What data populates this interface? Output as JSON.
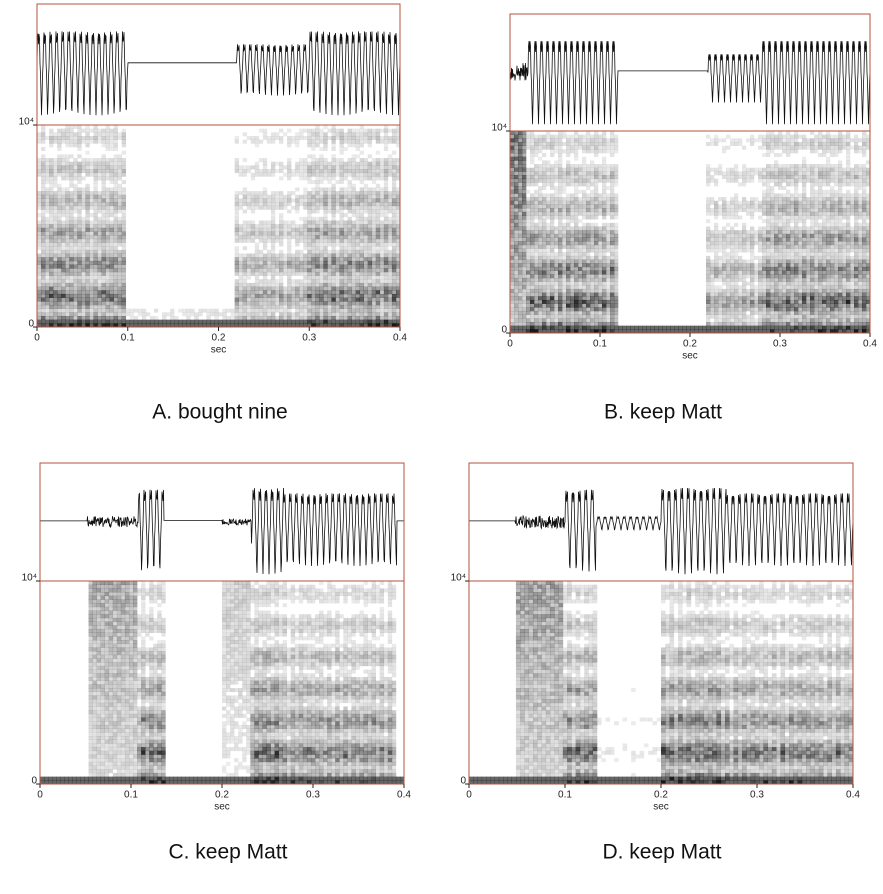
{
  "chart_data": [
    {
      "type": "spectrogram",
      "caption": "A. bought nine",
      "xlabel": "sec",
      "xlim": [
        0,
        0.4
      ],
      "xticks": [
        0,
        0.1,
        0.2,
        0.3,
        0.4
      ],
      "ylim": [
        0,
        10000
      ],
      "yticks": [
        0,
        {
          "value": 10000,
          "label": "10⁴"
        }
      ]
    },
    {
      "type": "spectrogram",
      "caption": "B. keep Matt",
      "xlabel": "sec",
      "xlim": [
        0,
        0.4
      ],
      "xticks": [
        0,
        0.1,
        0.2,
        0.3,
        0.4
      ],
      "ylim": [
        0,
        10000
      ],
      "yticks": [
        0,
        {
          "value": 10000,
          "label": "10⁴"
        }
      ]
    },
    {
      "type": "spectrogram",
      "caption": "C. keep Matt",
      "xlabel": "sec",
      "xlim": [
        0,
        0.4
      ],
      "xticks": [
        0,
        0.1,
        0.2,
        0.3,
        0.4
      ],
      "ylim": [
        0,
        10000
      ],
      "yticks": [
        0,
        {
          "value": 10000,
          "label": "10⁴"
        }
      ]
    },
    {
      "type": "spectrogram",
      "caption": "D. keep Matt",
      "xlabel": "sec",
      "xlim": [
        0,
        0.4
      ],
      "xticks": [
        0,
        0.1,
        0.2,
        0.3,
        0.4
      ],
      "ylim": [
        0,
        10000
      ],
      "yticks": [
        0,
        {
          "value": 10000,
          "label": "10⁴"
        }
      ]
    }
  ]
}
